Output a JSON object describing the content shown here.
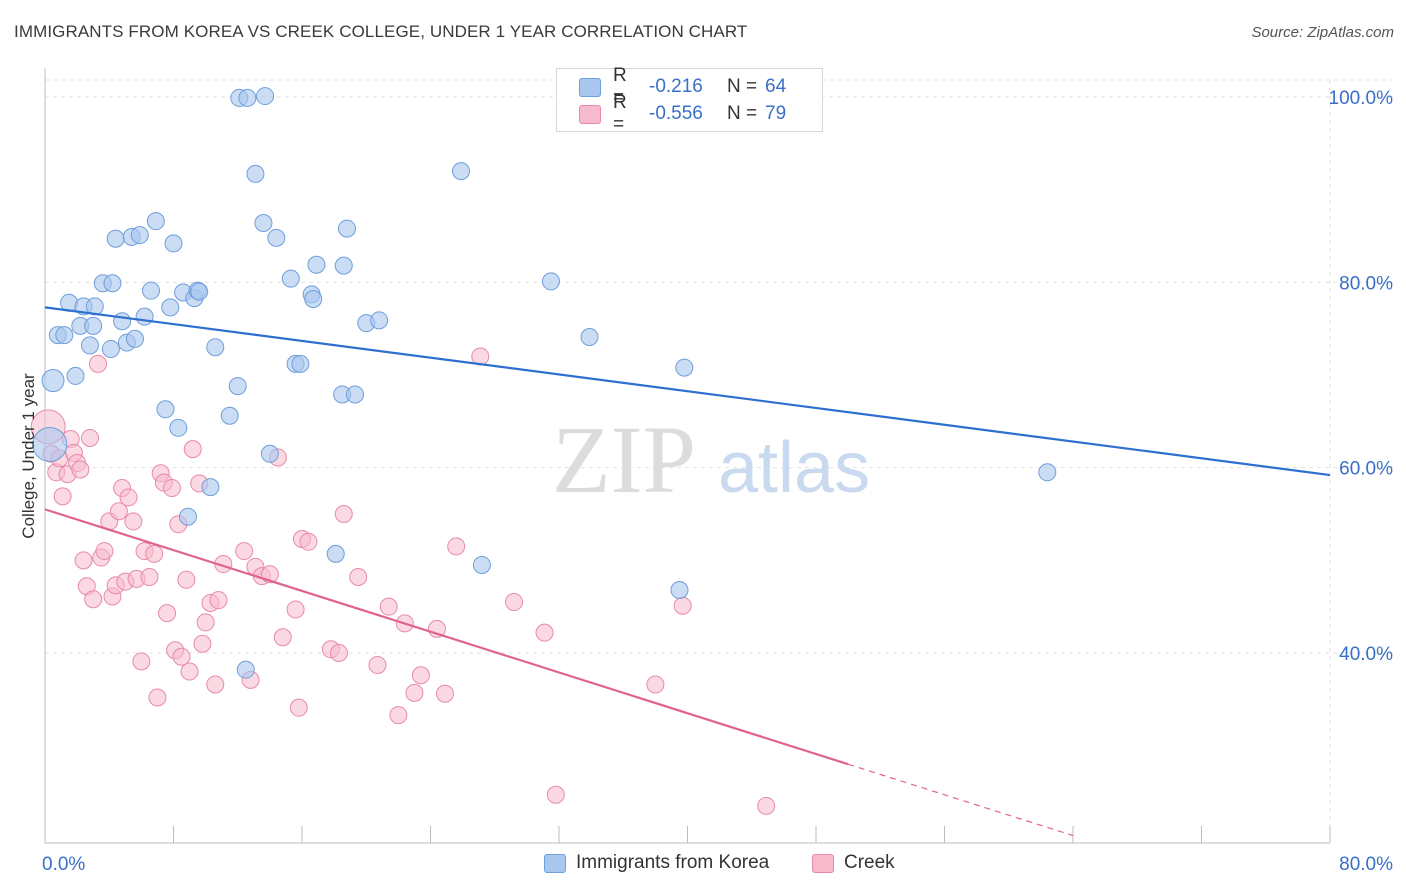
{
  "header": {
    "title": "IMMIGRANTS FROM KOREA VS CREEK COLLEGE, UNDER 1 YEAR CORRELATION CHART",
    "source": "Source: ZipAtlas.com"
  },
  "watermark": {
    "zip": "ZIP",
    "atlas": "atlas"
  },
  "legend_top": {
    "rows": [
      {
        "r_label": "R =",
        "r_value": "-0.216",
        "n_label": "N =",
        "n_value": "64"
      },
      {
        "r_label": "R =",
        "r_value": "-0.556",
        "n_label": "N =",
        "n_value": "79"
      }
    ]
  },
  "legend_bottom": {
    "items": [
      {
        "label": "Immigrants from Korea"
      },
      {
        "label": "Creek"
      }
    ]
  },
  "colors": {
    "series_a_fill": "#a9c7ee",
    "series_a_stroke": "#6e9edb",
    "series_a_line": "#2d6fd0",
    "series_b_fill": "#f7b9cc",
    "series_b_stroke": "#e88aa8",
    "series_b_line": "#e0628e",
    "axis_text": "#3a6fc9",
    "grid": "#e2e2e2"
  },
  "chart_data": {
    "type": "scatter",
    "title": "IMMIGRANTS FROM KOREA VS CREEK COLLEGE, UNDER 1 YEAR CORRELATION CHART",
    "xlabel": "",
    "ylabel": "College, Under 1 year",
    "xlim": [
      0,
      80
    ],
    "ylim": [
      20,
      104
    ],
    "x_tick_labels": [
      {
        "value": 0,
        "label": "0.0%"
      },
      {
        "value": 80,
        "label": "80.0%"
      }
    ],
    "y_tick_labels": [
      {
        "value": 40,
        "label": "40.0%"
      },
      {
        "value": 60,
        "label": "60.0%"
      },
      {
        "value": 80,
        "label": "80.0%"
      },
      {
        "value": 100,
        "label": "100.0%"
      }
    ],
    "grid": true,
    "legend_position": "top-center",
    "series": [
      {
        "name": "Immigrants from Korea",
        "r": -0.216,
        "n": 64,
        "trend": {
          "x0": 0,
          "y0": 77.3,
          "x1": 80,
          "y1": 59.2
        },
        "points": [
          [
            0.3,
            62.5
          ],
          [
            0.5,
            69.4
          ],
          [
            0.8,
            74.3
          ],
          [
            1.2,
            74.3
          ],
          [
            1.5,
            77.8
          ],
          [
            1.9,
            69.9
          ],
          [
            2.2,
            75.3
          ],
          [
            2.4,
            77.4
          ],
          [
            2.8,
            73.2
          ],
          [
            3.0,
            75.3
          ],
          [
            3.1,
            77.4
          ],
          [
            3.6,
            79.9
          ],
          [
            4.1,
            72.8
          ],
          [
            4.2,
            79.9
          ],
          [
            4.4,
            84.7
          ],
          [
            4.8,
            75.8
          ],
          [
            5.1,
            73.5
          ],
          [
            5.4,
            84.9
          ],
          [
            5.6,
            73.9
          ],
          [
            5.9,
            85.1
          ],
          [
            6.2,
            76.3
          ],
          [
            6.6,
            79.1
          ],
          [
            6.9,
            86.6
          ],
          [
            7.5,
            66.3
          ],
          [
            7.8,
            77.3
          ],
          [
            8.0,
            84.2
          ],
          [
            8.3,
            64.3
          ],
          [
            8.6,
            78.9
          ],
          [
            8.9,
            54.7
          ],
          [
            9.3,
            78.3
          ],
          [
            9.5,
            79.1
          ],
          [
            9.6,
            79.0
          ],
          [
            10.3,
            57.9
          ],
          [
            10.6,
            73.0
          ],
          [
            11.5,
            65.6
          ],
          [
            12.0,
            68.8
          ],
          [
            12.1,
            99.9
          ],
          [
            12.5,
            38.2
          ],
          [
            12.6,
            99.9
          ],
          [
            13.1,
            91.7
          ],
          [
            13.6,
            86.4
          ],
          [
            13.7,
            100.1
          ],
          [
            14.0,
            61.5
          ],
          [
            14.4,
            84.8
          ],
          [
            15.3,
            80.4
          ],
          [
            15.6,
            71.2
          ],
          [
            15.9,
            71.2
          ],
          [
            16.6,
            78.7
          ],
          [
            16.7,
            78.2
          ],
          [
            16.9,
            81.9
          ],
          [
            18.1,
            50.7
          ],
          [
            18.5,
            67.9
          ],
          [
            18.6,
            81.8
          ],
          [
            18.8,
            85.8
          ],
          [
            19.3,
            67.9
          ],
          [
            20.0,
            75.6
          ],
          [
            20.8,
            75.9
          ],
          [
            25.9,
            92.0
          ],
          [
            27.2,
            49.5
          ],
          [
            31.5,
            80.1
          ],
          [
            33.9,
            74.1
          ],
          [
            39.5,
            46.8
          ],
          [
            39.8,
            70.8
          ],
          [
            62.4,
            59.5
          ]
        ]
      },
      {
        "name": "Creek",
        "r": -0.556,
        "n": 79,
        "trend": {
          "x0": 0,
          "y0": 55.5,
          "x1": 50,
          "y1": 28.0,
          "dash_x1": 80,
          "dash_y1": 11.5
        },
        "points": [
          [
            0.2,
            64.4
          ],
          [
            0.4,
            61.5
          ],
          [
            0.7,
            59.5
          ],
          [
            0.9,
            61.0
          ],
          [
            1.1,
            56.9
          ],
          [
            1.4,
            59.3
          ],
          [
            1.6,
            63.1
          ],
          [
            1.8,
            61.6
          ],
          [
            2.0,
            60.5
          ],
          [
            2.2,
            59.8
          ],
          [
            2.4,
            50.0
          ],
          [
            2.6,
            47.2
          ],
          [
            2.8,
            63.2
          ],
          [
            3.0,
            45.8
          ],
          [
            3.3,
            71.2
          ],
          [
            3.5,
            50.3
          ],
          [
            3.7,
            51.0
          ],
          [
            4.0,
            54.2
          ],
          [
            4.2,
            46.1
          ],
          [
            4.4,
            47.3
          ],
          [
            4.6,
            55.3
          ],
          [
            4.8,
            57.8
          ],
          [
            5.0,
            47.7
          ],
          [
            5.2,
            56.8
          ],
          [
            5.5,
            54.2
          ],
          [
            5.7,
            48.0
          ],
          [
            6.0,
            39.1
          ],
          [
            6.2,
            51.0
          ],
          [
            6.5,
            48.2
          ],
          [
            6.8,
            50.7
          ],
          [
            7.0,
            35.2
          ],
          [
            7.2,
            59.4
          ],
          [
            7.4,
            58.4
          ],
          [
            7.6,
            44.3
          ],
          [
            7.9,
            57.8
          ],
          [
            8.1,
            40.3
          ],
          [
            8.3,
            53.9
          ],
          [
            8.5,
            39.6
          ],
          [
            8.8,
            47.9
          ],
          [
            9.0,
            38.0
          ],
          [
            9.2,
            62.0
          ],
          [
            9.6,
            58.3
          ],
          [
            9.8,
            41.0
          ],
          [
            10.0,
            43.3
          ],
          [
            10.3,
            45.4
          ],
          [
            10.6,
            36.6
          ],
          [
            10.8,
            45.7
          ],
          [
            11.1,
            49.6
          ],
          [
            12.4,
            51.0
          ],
          [
            12.8,
            37.1
          ],
          [
            13.1,
            49.3
          ],
          [
            13.5,
            48.3
          ],
          [
            14.0,
            48.5
          ],
          [
            14.5,
            61.1
          ],
          [
            14.8,
            41.7
          ],
          [
            15.6,
            44.7
          ],
          [
            15.8,
            34.1
          ],
          [
            16.0,
            52.3
          ],
          [
            16.4,
            52.0
          ],
          [
            17.8,
            40.4
          ],
          [
            18.3,
            40.0
          ],
          [
            18.6,
            55.0
          ],
          [
            19.5,
            48.2
          ],
          [
            20.7,
            38.7
          ],
          [
            21.4,
            45.0
          ],
          [
            22.0,
            33.3
          ],
          [
            22.4,
            43.2
          ],
          [
            23.0,
            35.7
          ],
          [
            23.4,
            37.6
          ],
          [
            24.4,
            42.6
          ],
          [
            24.9,
            35.6
          ],
          [
            25.6,
            51.5
          ],
          [
            27.1,
            72.0
          ],
          [
            29.2,
            45.5
          ],
          [
            31.1,
            42.2
          ],
          [
            31.8,
            24.7
          ],
          [
            38.0,
            36.6
          ],
          [
            39.7,
            45.1
          ],
          [
            44.9,
            23.5
          ]
        ]
      }
    ]
  }
}
